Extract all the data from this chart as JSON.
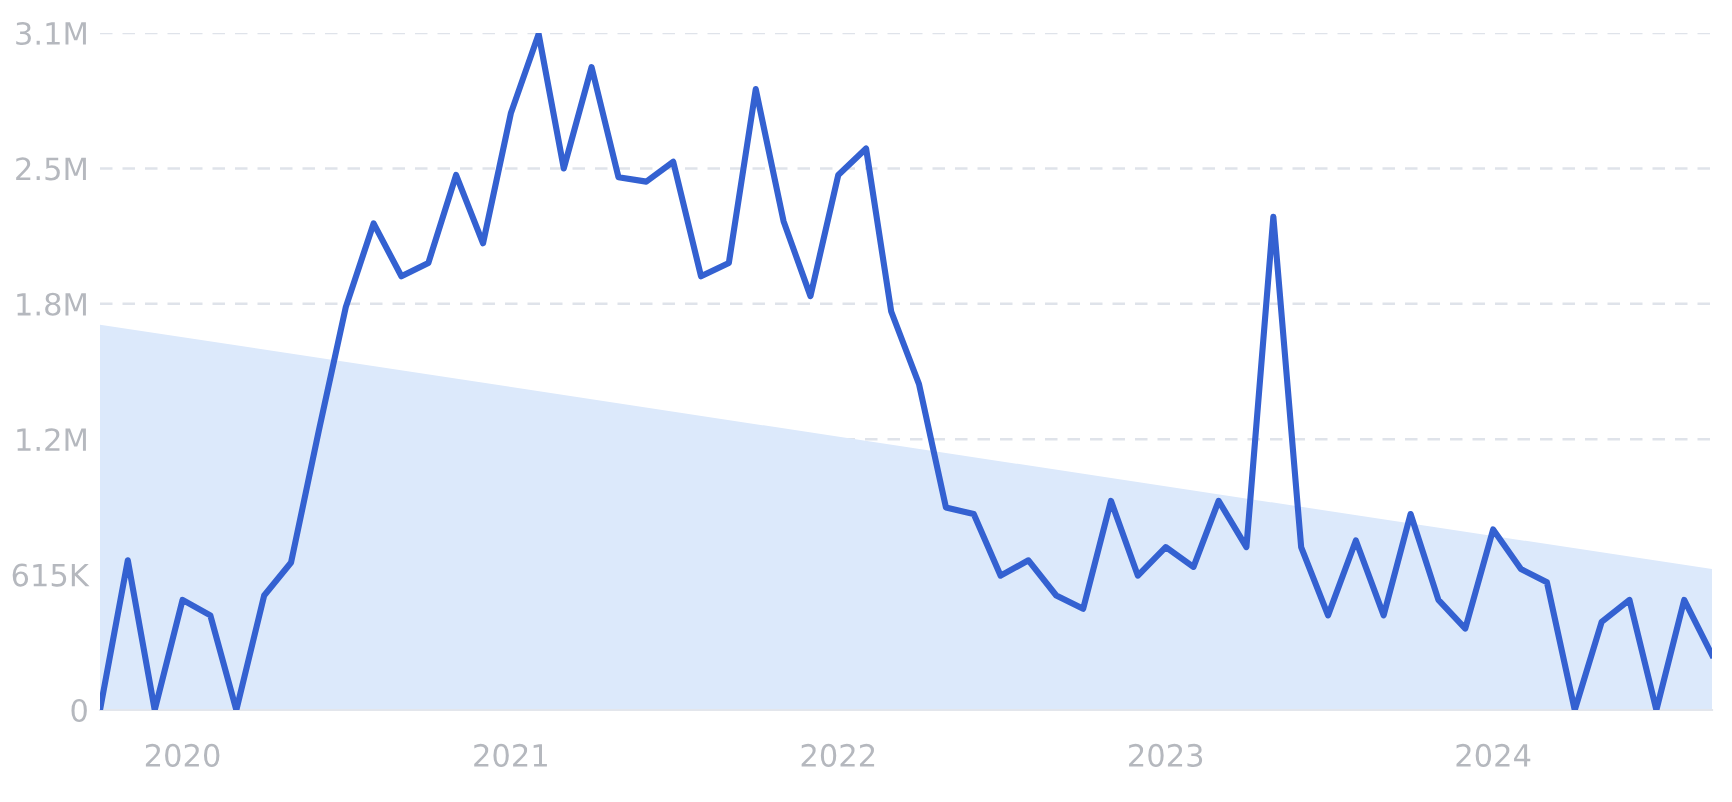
{
  "chart_data": {
    "type": "line",
    "x": [
      "2019-10",
      "2019-11",
      "2019-12",
      "2020-01",
      "2020-02",
      "2020-03",
      "2020-04",
      "2020-05",
      "2020-06",
      "2020-07",
      "2020-08",
      "2020-09",
      "2020-10",
      "2020-11",
      "2020-12",
      "2021-01",
      "2021-02",
      "2021-03",
      "2021-04",
      "2021-05",
      "2021-06",
      "2021-07",
      "2021-08",
      "2021-09",
      "2021-10",
      "2021-11",
      "2021-12",
      "2022-01",
      "2022-02",
      "2022-03",
      "2022-04",
      "2022-05",
      "2022-06",
      "2022-07",
      "2022-08",
      "2022-09",
      "2022-10",
      "2022-11",
      "2022-12",
      "2023-01",
      "2023-02",
      "2023-03",
      "2023-04",
      "2023-05",
      "2023-06",
      "2023-07",
      "2023-08",
      "2023-09",
      "2023-10",
      "2023-11",
      "2023-12",
      "2024-01",
      "2024-02",
      "2024-03",
      "2024-04",
      "2024-05",
      "2024-06",
      "2024-07",
      "2024-08",
      "2024-09"
    ],
    "series": [
      {
        "type": "area",
        "x": [
          "2019-10",
          "2024-09"
        ],
        "color": "#dce9fb",
        "values": [
          1750000,
          640000
        ]
      },
      {
        "color": "#3461d1",
        "values": [
          0,
          680000,
          0,
          500000,
          430000,
          0,
          520000,
          670000,
          1270000,
          1830000,
          2210000,
          1970000,
          2030000,
          2430000,
          2120000,
          2710000,
          3070000,
          2460000,
          2920000,
          2420000,
          2400000,
          2490000,
          1970000,
          2030000,
          2820000,
          2220000,
          1880000,
          2430000,
          2550000,
          1810000,
          1480000,
          920000,
          890000,
          610000,
          680000,
          520000,
          460000,
          950000,
          610000,
          740000,
          650000,
          950000,
          740000,
          2240000,
          740000,
          430000,
          770000,
          430000,
          890000,
          500000,
          370000,
          820000,
          640000,
          580000,
          0,
          400000,
          500000,
          0,
          500000,
          250000
        ]
      }
    ],
    "xlim": [
      "2019-10",
      "2024-09"
    ],
    "xticks": [
      {
        "value": "2020-01",
        "label": "2020"
      },
      {
        "value": "2021-01",
        "label": "2021"
      },
      {
        "value": "2022-01",
        "label": "2022"
      },
      {
        "value": "2023-01",
        "label": "2023"
      },
      {
        "value": "2024-01",
        "label": "2024"
      }
    ],
    "ylim": [
      0,
      3075000
    ],
    "yticks": [
      0,
      {
        "value": 615000,
        "label": "615K"
      },
      {
        "value": 1230000,
        "label": "1.2M"
      },
      {
        "value": 1845000,
        "label": "1.8M"
      },
      {
        "value": 2460000,
        "label": "2.5M"
      },
      {
        "value": 3075000,
        "label": "3.1M"
      }
    ],
    "grid": "y",
    "legend": false,
    "marker": "none",
    "line_style": "solid"
  }
}
